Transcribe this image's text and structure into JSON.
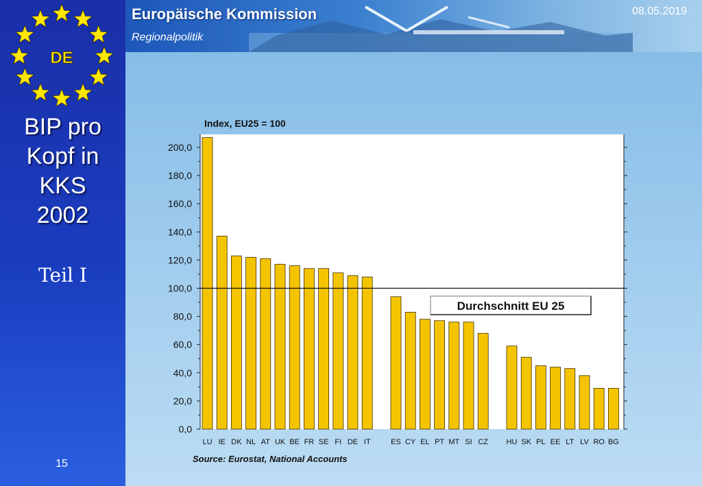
{
  "header": {
    "title": "Europäische Kommission",
    "subtitle": "Regionalpolitik",
    "date": "08.05.2019"
  },
  "sidebar": {
    "badge": "DE",
    "title_lines": [
      "BIP pro",
      "Kopf in",
      "KKS",
      "2002"
    ],
    "subtitle": "Teil I",
    "page_number": "15"
  },
  "colors": {
    "bar": "#f5c400",
    "bar_stroke": "#3a2e00",
    "plot_bg": "#ffffff",
    "star": "#ffe600"
  },
  "chart_data": {
    "type": "bar",
    "title": "Index, EU25 = 100",
    "groups": [
      {
        "categories": [
          "LU",
          "IE",
          "DK",
          "NL",
          "AT",
          "UK",
          "BE",
          "FR",
          "SE",
          "FI",
          "DE",
          "IT"
        ],
        "values": [
          207,
          137,
          123,
          122,
          121,
          117,
          116,
          114,
          114,
          111,
          109,
          108
        ]
      },
      {
        "categories": [
          "ES",
          "CY",
          "EL",
          "PT",
          "MT",
          "SI",
          "CZ"
        ],
        "values": [
          94,
          83,
          78,
          77,
          76,
          76,
          68
        ]
      },
      {
        "categories": [
          "HU",
          "SK",
          "PL",
          "EE",
          "LT",
          "LV",
          "RO",
          "BG"
        ],
        "values": [
          59,
          51,
          45,
          44,
          43,
          38,
          29,
          29
        ]
      }
    ],
    "yticks": [
      "0,0",
      "20,0",
      "40,0",
      "60,0",
      "80,0",
      "100,0",
      "120,0",
      "140,0",
      "160,0",
      "180,0",
      "200,0"
    ],
    "ylim": [
      0,
      210
    ],
    "reference_line": {
      "value": 100,
      "label": "Durchschnitt EU 25"
    },
    "source": "Source: Eurostat, National Accounts"
  }
}
